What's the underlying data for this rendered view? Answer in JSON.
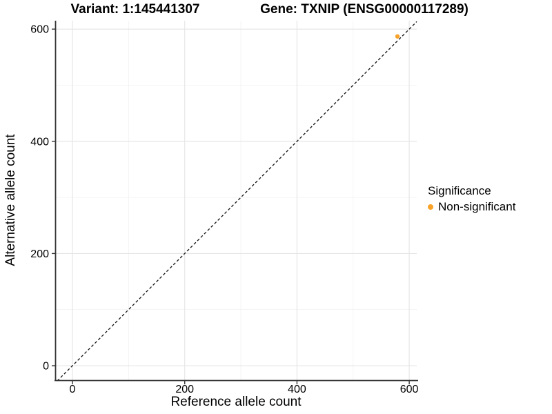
{
  "page": {
    "background": "#FFFFFF"
  },
  "chart_data": {
    "type": "scatter",
    "titles": {
      "left": "Variant: 1:145441307",
      "right": "Gene: TXNIP (ENSG00000117289)"
    },
    "xlabel": "Reference allele count",
    "ylabel": "Alternative allele count",
    "x_ticks": [
      0,
      200,
      400,
      600
    ],
    "y_ticks": [
      0,
      200,
      400,
      600
    ],
    "xlim": [
      -31,
      614
    ],
    "ylim": [
      -28,
      617
    ],
    "grid": {
      "major": true,
      "minor": true
    },
    "reference_line": {
      "type": "identity y=x",
      "style": "dashed",
      "color": "#111111"
    },
    "series": [
      {
        "name": "Non-significant",
        "color": "#F9A228",
        "points": [
          {
            "x": 579,
            "y": 587
          }
        ]
      }
    ],
    "legend": {
      "title": "Significance",
      "position": "right",
      "items": [
        {
          "label": "Non-significant",
          "color": "#F9A228"
        }
      ]
    },
    "colors": {
      "grid_major": "#E4E4E4",
      "grid_minor": "#F1F1F1",
      "axis_line": "#333333",
      "text": "#000000"
    }
  }
}
